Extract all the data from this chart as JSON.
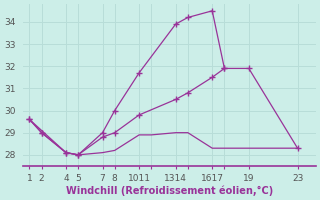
{
  "xlabel": "Windchill (Refroidissement éolien,°C)",
  "bg_color": "#cceee8",
  "grid_color": "#b8ddd8",
  "line_color": "#993399",
  "ylim": [
    27.5,
    34.8
  ],
  "xlim": [
    0.5,
    24.5
  ],
  "yticks": [
    28,
    29,
    30,
    31,
    32,
    33,
    34
  ],
  "xtick_positions": [
    1,
    2,
    4,
    5,
    7,
    8,
    10,
    11,
    13,
    14,
    16,
    17,
    19,
    23
  ],
  "xtick_labels": [
    "1",
    "2",
    "4",
    "5",
    "7",
    "8",
    "1011",
    "",
    "1314",
    "",
    "1617",
    "",
    "19",
    "23"
  ],
  "line1_x": [
    1,
    2,
    4,
    5,
    7,
    8,
    10,
    13,
    14,
    16,
    17
  ],
  "line1_y": [
    29.6,
    29.0,
    28.1,
    28.0,
    29.0,
    30.0,
    31.7,
    33.9,
    34.2,
    34.5,
    31.9
  ],
  "line2_x": [
    1,
    2,
    4,
    5,
    7,
    8,
    10,
    13,
    14,
    16,
    17,
    19,
    23
  ],
  "line2_y": [
    29.6,
    29.0,
    28.1,
    28.0,
    28.8,
    29.0,
    29.8,
    30.5,
    30.8,
    31.5,
    31.9,
    31.9,
    28.3
  ],
  "line3_x": [
    1,
    2,
    4,
    5,
    7,
    8,
    10,
    11,
    13,
    14,
    16,
    17,
    19,
    23
  ],
  "line3_y": [
    29.6,
    29.1,
    28.1,
    28.0,
    28.1,
    28.2,
    28.9,
    28.9,
    29.0,
    29.0,
    28.3,
    28.3,
    28.3,
    28.3
  ]
}
